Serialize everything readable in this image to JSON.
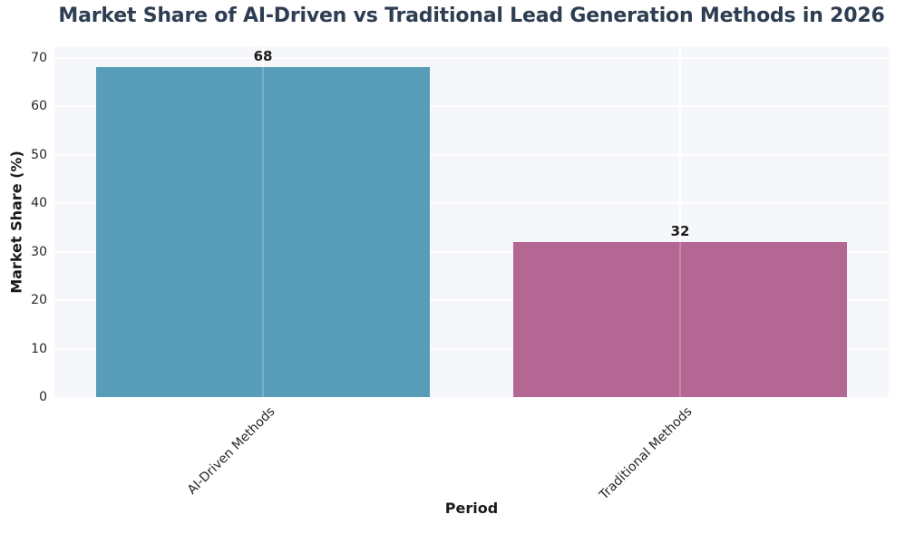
{
  "chart_data": {
    "type": "bar",
    "title": "Market Share of AI-Driven vs Traditional Lead Generation Methods in 2026",
    "xlabel": "Period",
    "ylabel": "Market Share (%)",
    "categories": [
      "AI-Driven Methods",
      "Traditional Methods"
    ],
    "values": [
      68,
      32
    ],
    "value_labels": [
      "68",
      "32"
    ],
    "yticks": [
      0,
      10,
      20,
      30,
      40,
      50,
      60,
      70
    ],
    "ylim": [
      0,
      72
    ],
    "grid": "horizontal white gridlines on light panel",
    "legend": "none",
    "colors": {
      "bars": [
        "#579dba",
        "#b56793"
      ],
      "title_text": "#2e3e52",
      "axis_label_text": "#1a1a1a",
      "tick_text": "#262626",
      "plot_background": "#f5f7fa",
      "gridline": "#ffffff",
      "figure_background": "#ffffff"
    }
  }
}
